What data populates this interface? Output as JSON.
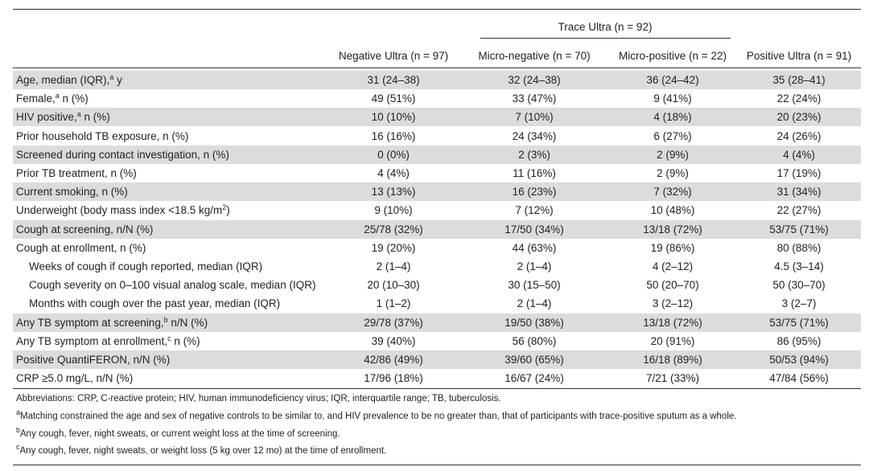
{
  "table": {
    "group_header": "Trace Ultra (n = 92)",
    "columns": [
      "Negative Ultra (n = 97)",
      "Micro-negative (n = 70)",
      "Micro-positive (n = 22)",
      "Positive Ultra (n = 91)"
    ],
    "rows": [
      {
        "label": [
          "Age, median (IQR),",
          "a",
          " y"
        ],
        "shaded": true,
        "cells": [
          "31 (24–38)",
          "32 (24–38)",
          "36 (24–42)",
          "35 (28–41)"
        ]
      },
      {
        "label": [
          "Female,",
          "a",
          " n (%)"
        ],
        "shaded": false,
        "cells": [
          "49 (51%)",
          "33 (47%)",
          "9 (41%)",
          "22 (24%)"
        ]
      },
      {
        "label": [
          "HIV positive,",
          "a",
          " n (%)"
        ],
        "shaded": true,
        "cells": [
          "10 (10%)",
          "7 (10%)",
          "4 (18%)",
          "20 (23%)"
        ]
      },
      {
        "label": [
          "Prior household TB exposure, n (%)"
        ],
        "shaded": false,
        "cells": [
          "16 (16%)",
          "24 (34%)",
          "6 (27%)",
          "24 (26%)"
        ]
      },
      {
        "label": [
          "Screened during contact investigation, n (%)"
        ],
        "shaded": true,
        "cells": [
          "0 (0%)",
          "2 (3%)",
          "2 (9%)",
          "4 (4%)"
        ]
      },
      {
        "label": [
          "Prior TB treatment, n (%)"
        ],
        "shaded": false,
        "cells": [
          "4 (4%)",
          "11 (16%)",
          "2 (9%)",
          "17 (19%)"
        ]
      },
      {
        "label": [
          "Current smoking, n (%)"
        ],
        "shaded": true,
        "cells": [
          "13 (13%)",
          "16 (23%)",
          "7 (32%)",
          "31 (34%)"
        ]
      },
      {
        "label": [
          "Underweight (body mass index <18.5 kg/m",
          "2",
          ")"
        ],
        "shaded": false,
        "cells": [
          "9 (10%)",
          "7 (12%)",
          "10 (48%)",
          "22 (27%)"
        ]
      },
      {
        "label": [
          "Cough at screening, n/N (%)"
        ],
        "shaded": true,
        "cells": [
          "25/78 (32%)",
          "17/50 (34%)",
          "13/18 (72%)",
          "53/75 (71%)"
        ]
      },
      {
        "label": [
          "Cough at enrollment, n (%)"
        ],
        "shaded": false,
        "cells": [
          "19 (20%)",
          "44 (63%)",
          "19 (86%)",
          "80 (88%)"
        ]
      },
      {
        "label": [
          "Weeks of cough if cough reported, median (IQR)"
        ],
        "indent": true,
        "shaded": false,
        "cells": [
          "2 (1–4)",
          "2 (1–4)",
          "4 (2–12)",
          "4.5 (3–14)"
        ]
      },
      {
        "label": [
          "Cough severity on 0–100 visual analog scale, median (IQR)"
        ],
        "indent": true,
        "shaded": false,
        "cells": [
          "20 (10–30)",
          "30 (15–50)",
          "50 (20–70)",
          "50 (30–70)"
        ]
      },
      {
        "label": [
          "Months with cough over the past year, median (IQR)"
        ],
        "indent": true,
        "shaded": false,
        "cells": [
          "1 (1–2)",
          "2 (1–4)",
          "3 (2–12)",
          "3 (2–7)"
        ]
      },
      {
        "label": [
          "Any TB symptom at screening,",
          "b",
          " n/N (%)"
        ],
        "shaded": true,
        "cells": [
          "29/78 (37%)",
          "19/50 (38%)",
          "13/18 (72%)",
          "53/75 (71%)"
        ]
      },
      {
        "label": [
          "Any TB symptom at enrollment,",
          "c",
          " n (%)"
        ],
        "shaded": false,
        "cells": [
          "39 (40%)",
          "56 (80%)",
          "20 (91%)",
          "86 (95%)"
        ]
      },
      {
        "label": [
          "Positive QuantiFERON, n/N (%)"
        ],
        "shaded": true,
        "cells": [
          "42/86 (49%)",
          "39/60 (65%)",
          "16/18 (89%)",
          "50/53 (94%)"
        ]
      },
      {
        "label": [
          "CRP ≥5.0 mg/L, n/N (%)"
        ],
        "shaded": false,
        "cells": [
          "17/96 (18%)",
          "16/67 (24%)",
          "7/21 (33%)",
          "47/84 (56%)"
        ]
      }
    ],
    "abbreviations": "Abbreviations: CRP, C-reactive protein; HIV, human immunodeficiency virus; IQR, interquartile range; TB, tuberculosis.",
    "footnotes": [
      {
        "mark": "a",
        "text": "Matching constrained the age and sex of negative controls to be similar to, and HIV prevalence to be no greater than, that of participants with trace-positive sputum as a whole."
      },
      {
        "mark": "b",
        "text": "Any cough, fever, night sweats, or current weight loss at the time of screening."
      },
      {
        "mark": "c",
        "text": "Any cough, fever, night sweats, or weight loss (5 kg over 12 mo) at the time of enrollment."
      }
    ]
  }
}
